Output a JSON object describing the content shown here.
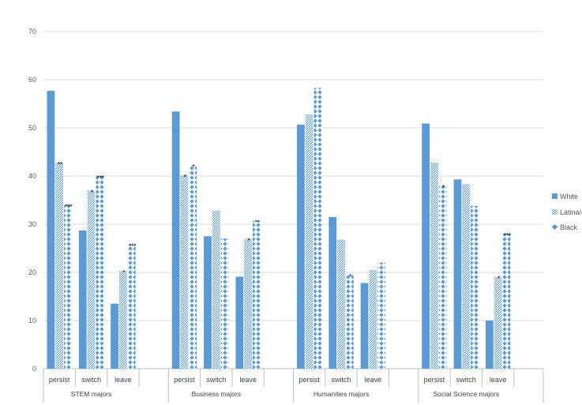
{
  "chart_data": {
    "type": "bar",
    "ylim": [
      0,
      70
    ],
    "y_ticks": [
      0,
      10,
      20,
      30,
      40,
      50,
      60,
      70
    ],
    "grid": true,
    "legend_position": "right",
    "series": [
      {
        "name": "White",
        "color": "#5b9bd5",
        "pattern": "solid"
      },
      {
        "name": "Latina/o",
        "color": "#5b9bd5",
        "pattern": "diagonal-hatch"
      },
      {
        "name": "Black",
        "color": "#5b9bd5",
        "pattern": "diamonds"
      }
    ],
    "groups": [
      {
        "label": "STEM majors",
        "categories": [
          {
            "label": "persist",
            "values": [
              57.7,
              42.8,
              34.0
            ],
            "significance": [
              "",
              "**",
              "***"
            ]
          },
          {
            "label": "switch",
            "values": [
              28.7,
              37.0,
              40.0
            ],
            "significance": [
              "",
              "*",
              "***"
            ]
          },
          {
            "label": "leave",
            "values": [
              13.5,
              20.3,
              25.8
            ],
            "significance": [
              "",
              "*",
              "***"
            ]
          }
        ]
      },
      {
        "label": "Business majors",
        "categories": [
          {
            "label": "persist",
            "values": [
              53.4,
              40.2,
              42.3
            ],
            "significance": [
              "",
              "*",
              "*"
            ]
          },
          {
            "label": "switch",
            "values": [
              27.5,
              32.8,
              27.0
            ],
            "significance": [
              "",
              "",
              ""
            ]
          },
          {
            "label": "leave",
            "values": [
              19.1,
              27.0,
              30.7
            ],
            "significance": [
              "",
              "*",
              "**"
            ]
          }
        ]
      },
      {
        "label": "Humanities majors",
        "categories": [
          {
            "label": "persist",
            "values": [
              50.7,
              52.8,
              58.3
            ],
            "significance": [
              "",
              "",
              ""
            ]
          },
          {
            "label": "switch",
            "values": [
              31.5,
              26.8,
              19.5
            ],
            "significance": [
              "",
              "",
              "*"
            ]
          },
          {
            "label": "leave",
            "values": [
              17.8,
              20.5,
              22.0
            ],
            "significance": [
              "",
              "",
              ""
            ]
          }
        ]
      },
      {
        "label": "Social Science majors",
        "categories": [
          {
            "label": "persist",
            "values": [
              50.9,
              42.8,
              38.0
            ],
            "significance": [
              "",
              "",
              "*"
            ]
          },
          {
            "label": "switch",
            "values": [
              39.3,
              38.3,
              33.8
            ],
            "significance": [
              "",
              "",
              ""
            ]
          },
          {
            "label": "leave",
            "values": [
              10.0,
              19.1,
              28.0
            ],
            "significance": [
              "",
              "*",
              "***"
            ]
          }
        ]
      }
    ]
  }
}
